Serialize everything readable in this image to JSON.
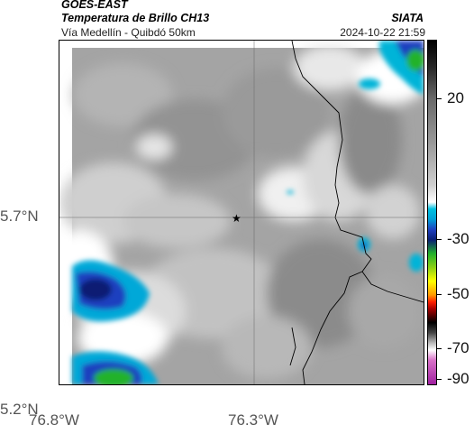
{
  "header": {
    "satellite": "GOES-EAST",
    "product": "Temperatura de Brillo CH13",
    "region": "Vía Medellín - Quibdó 50km",
    "agency": "SIATA",
    "datetime": "2024-10-22 21:59"
  },
  "map": {
    "x_ticks": [
      "76.8°W",
      "76.3°W"
    ],
    "y_ticks": [
      "5.7°N",
      "5.2°N"
    ],
    "marker": "star-icon",
    "colors": {
      "light_gray": "#d8d8d8",
      "mid_gray": "#9e9e9e",
      "dark_gray": "#858585",
      "white": "#ffffff",
      "cyan": "#00b4d8",
      "blue": "#1f3fbf",
      "navy": "#0a1f73",
      "green": "#22b22a"
    }
  },
  "colorbar": {
    "labels": [
      "20",
      "-30",
      "-50",
      "-70",
      "-90"
    ]
  }
}
